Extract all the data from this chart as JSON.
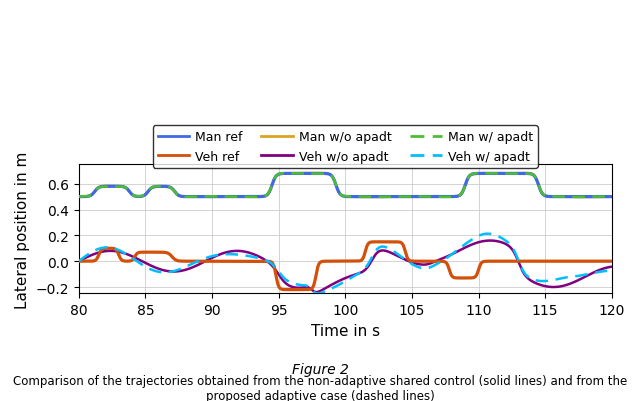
{
  "title": "Figure 2",
  "caption": "Comparison of the trajectories obtained from the non-adaptive shared control (solid lines) and from the\nproposed adaptive case (dashed lines)",
  "xlabel": "Time in s",
  "ylabel": "Lateral position in m",
  "xlim": [
    80,
    120
  ],
  "ylim": [
    -0.25,
    0.75
  ],
  "yticks": [
    -0.2,
    0.0,
    0.2,
    0.4,
    0.6
  ],
  "xticks": [
    80,
    85,
    90,
    95,
    100,
    105,
    110,
    115,
    120
  ],
  "colors": {
    "man_ref": "#4169E1",
    "veh_ref": "#D2500A",
    "man_wo": "#DAA520",
    "veh_wo": "#800080",
    "man_w": "#4DBD33",
    "veh_w": "#00BFFF"
  },
  "legend": [
    {
      "label": "Man ref",
      "color": "#4169E1",
      "ls": "solid"
    },
    {
      "label": "Veh ref",
      "color": "#D2500A",
      "ls": "solid"
    },
    {
      "label": "Man w/o apadt",
      "color": "#DAA520",
      "ls": "solid"
    },
    {
      "label": "Veh w/o apadt",
      "color": "#800080",
      "ls": "solid"
    },
    {
      "label": "Man w/ apadt",
      "color": "#4DBD33",
      "ls": "dashed"
    },
    {
      "label": "Veh w/ apadt",
      "color": "#00BFFF",
      "ls": "dashed"
    }
  ]
}
